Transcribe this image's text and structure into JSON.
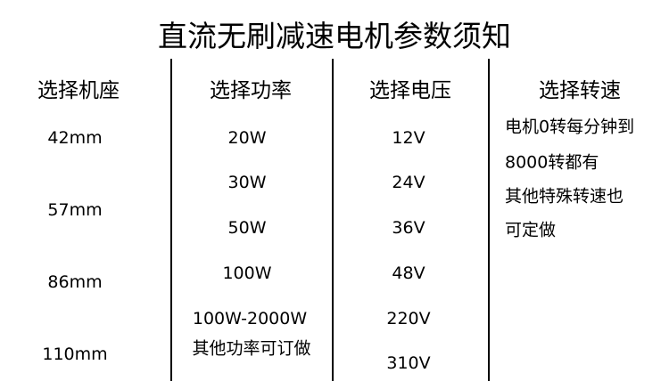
{
  "title": "直流无刷减速电机参数须知",
  "columns": [
    {
      "header": "选择机座",
      "items": [
        "42mm",
        "57mm",
        "86mm",
        "110mm"
      ]
    },
    {
      "header": "选择功率",
      "items": [
        "20W",
        "30W",
        "50W",
        "100W",
        "100W-2000W",
        "其他功率可订做"
      ]
    },
    {
      "header": "选择电压",
      "items": [
        "12V",
        "24V",
        "36V",
        "48V",
        "220V",
        "310V"
      ]
    },
    {
      "header": "选择转速",
      "items": [
        "电机0转每分钟到",
        "8000转都有",
        "其他特殊转速也",
        "可定做"
      ]
    }
  ]
}
